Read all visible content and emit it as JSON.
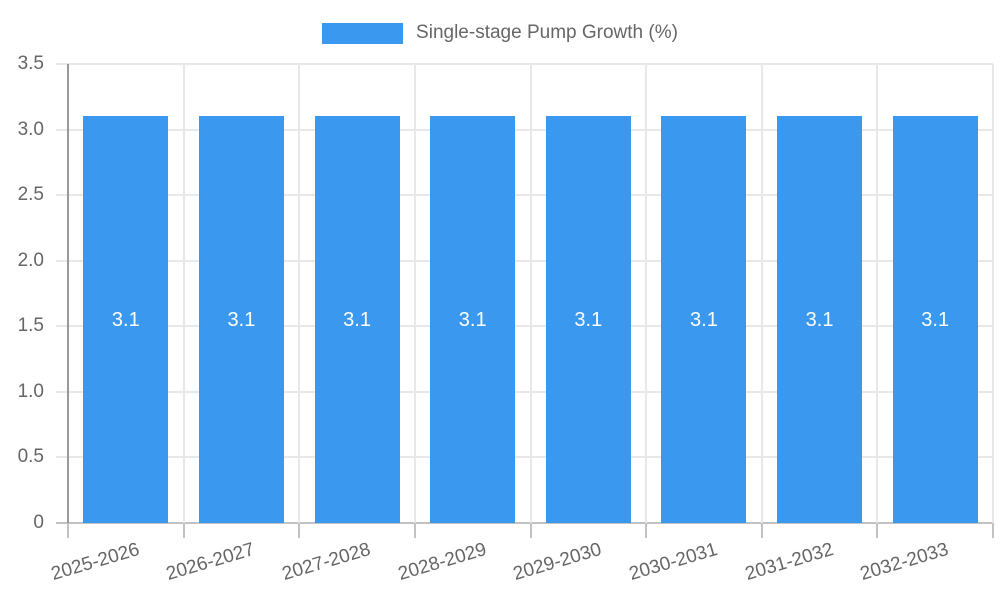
{
  "legend": {
    "label": "Single-stage Pump Growth (%)"
  },
  "colors": {
    "bar": "#3a99ee",
    "bar_label": "#ffffff",
    "text": "#666666",
    "grid": "#e8e8e8",
    "y_axis_line": "#999999",
    "x_axis_line": "#c2c2c2",
    "background": "#ffffff"
  },
  "chart_data": {
    "type": "bar",
    "title": "Single-stage Pump Growth (%)",
    "series_name": "Single-stage Pump Growth (%)",
    "categories": [
      "2025-2026",
      "2026-2027",
      "2027-2028",
      "2028-2029",
      "2029-2030",
      "2030-2031",
      "2031-2032",
      "2032-2033"
    ],
    "values": [
      3.1,
      3.1,
      3.1,
      3.1,
      3.1,
      3.1,
      3.1,
      3.1
    ],
    "bar_labels": [
      "3.1",
      "3.1",
      "3.1",
      "3.1",
      "3.1",
      "3.1",
      "3.1",
      "3.1"
    ],
    "xlabel": "",
    "ylabel": "",
    "ylim": [
      0,
      3.5
    ],
    "ytick_step": 0.5,
    "ytick_labels": [
      "0",
      "0.5",
      "1.0",
      "1.5",
      "2.0",
      "2.5",
      "3.0",
      "3.5"
    ],
    "grid": true,
    "legend_position": "top",
    "x_label_rotation_deg": -16.5
  }
}
